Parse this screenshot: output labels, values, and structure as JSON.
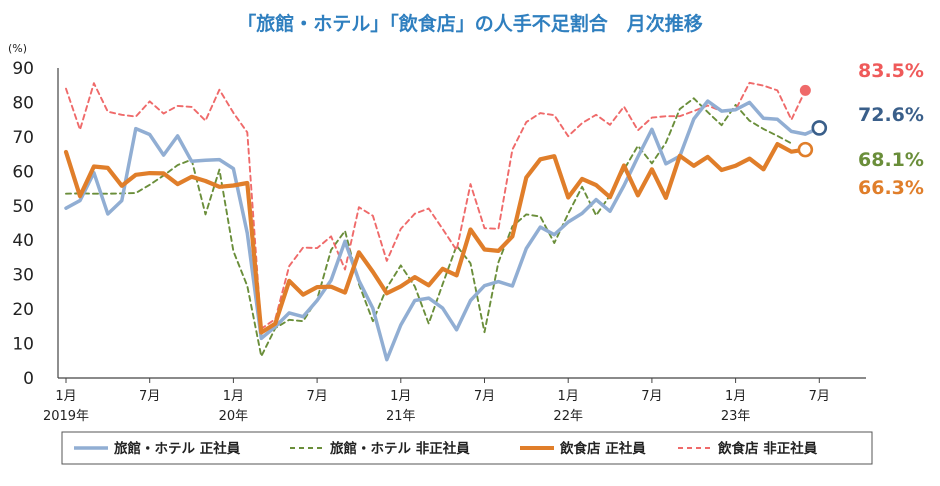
{
  "chart_data": {
    "type": "line",
    "title": "「旅館・ホテル」「飲食店」の人手不足割合　月次推移",
    "unit": "(%)",
    "ylim": [
      0,
      90
    ],
    "yticks": [
      "0",
      "10",
      "20",
      "30",
      "40",
      "50",
      "60",
      "70",
      "80",
      "90"
    ],
    "grid": false,
    "legend_position": "bottom",
    "x_tick_labels": [
      {
        "index": 0,
        "month": "1月",
        "year": "2019年"
      },
      {
        "index": 6,
        "month": "7月",
        "year": ""
      },
      {
        "index": 12,
        "month": "1月",
        "year": "20年"
      },
      {
        "index": 18,
        "month": "7月",
        "year": ""
      },
      {
        "index": 24,
        "month": "1月",
        "year": "21年"
      },
      {
        "index": 30,
        "month": "7月",
        "year": ""
      },
      {
        "index": 36,
        "month": "1月",
        "year": "22年"
      },
      {
        "index": 42,
        "month": "7月",
        "year": ""
      },
      {
        "index": 48,
        "month": "1月",
        "year": "23年"
      },
      {
        "index": 54,
        "month": "7月",
        "year": ""
      }
    ],
    "series": [
      {
        "name": "旅館・ホテル 正社員",
        "color": "#91aed3",
        "style": "solid",
        "end_label": "72.6%",
        "end_label_color": "#3a5f8a",
        "values": [
          49.3,
          51.5,
          59.6,
          47.6,
          51.5,
          72.4,
          70.7,
          64.7,
          70.3,
          62.9,
          63.2,
          63.4,
          60.8,
          42.0,
          11.5,
          14.9,
          18.9,
          17.8,
          22.5,
          28.4,
          39.7,
          28.3,
          20.2,
          5.3,
          15.4,
          22.5,
          23.2,
          20.3,
          14.0,
          22.5,
          26.8,
          28.0,
          26.7,
          37.6,
          43.8,
          41.6,
          45.3,
          47.8,
          51.8,
          48.4,
          55.9,
          64.2,
          72.2,
          62.2,
          64.4,
          75.2,
          80.4,
          77.5,
          77.9,
          80.0,
          75.4,
          75.1,
          71.6,
          70.8,
          72.6
        ]
      },
      {
        "name": "旅館・ホテル 非正社員",
        "color": "#6a8e3a",
        "style": "dashed",
        "end_label": "68.1%",
        "end_label_color": "#6a8e3a",
        "values": [
          53.5,
          53.6,
          53.5,
          53.5,
          53.6,
          53.7,
          56.1,
          58.8,
          61.8,
          63.4,
          47.5,
          60.5,
          36.8,
          26.7,
          6.3,
          14.5,
          16.9,
          16.5,
          22.8,
          37.2,
          42.7,
          27.3,
          16.5,
          26.2,
          32.7,
          26.6,
          15.8,
          27.2,
          38.4,
          33.3,
          13.3,
          33.6,
          44.0,
          47.5,
          46.9,
          39.2,
          47.7,
          55.5,
          47.2,
          53.0,
          60.5,
          67.4,
          62.3,
          68.3,
          78.1,
          81.2,
          77.2,
          73.4,
          79.3,
          74.7,
          72.3,
          70.3,
          68.1
        ]
      },
      {
        "name": "飲食店 正社員",
        "color": "#e07e2a",
        "style": "solid",
        "end_label": "66.3%",
        "end_label_color": "#e07e2a",
        "values": [
          65.6,
          52.8,
          61.4,
          61.0,
          55.8,
          59.0,
          59.5,
          59.4,
          56.3,
          58.4,
          57.2,
          55.5,
          55.9,
          56.6,
          13.2,
          15.8,
          28.2,
          24.2,
          26.4,
          26.5,
          24.8,
          36.5,
          30.8,
          24.6,
          26.6,
          29.3,
          26.9,
          31.7,
          29.8,
          43.1,
          37.3,
          36.9,
          41.1,
          58.2,
          63.5,
          64.4,
          52.4,
          57.8,
          56.0,
          52.5,
          61.7,
          53.0,
          60.6,
          52.3,
          64.5,
          61.6,
          64.2,
          60.4,
          61.6,
          63.7,
          60.6,
          67.9,
          65.7,
          66.3
        ]
      },
      {
        "name": "飲食店 非正社員",
        "color": "#ef6a6a",
        "style": "dashed",
        "end_label": "83.5%",
        "end_label_color": "#ef5a5a",
        "values": [
          84.0,
          72.1,
          85.6,
          77.3,
          76.4,
          75.9,
          80.3,
          76.8,
          79.0,
          78.7,
          74.7,
          83.7,
          77.0,
          71.3,
          14.3,
          17.1,
          32.5,
          37.9,
          37.7,
          41.1,
          31.5,
          49.6,
          47.1,
          34.0,
          43.3,
          47.7,
          49.2,
          43.3,
          37.1,
          56.3,
          43.5,
          43.3,
          66.3,
          74.3,
          76.9,
          76.3,
          70.2,
          74.0,
          76.4,
          73.5,
          78.8,
          71.9,
          75.6,
          76.0,
          76.0,
          77.5,
          79.1,
          77.5,
          77.9,
          85.7,
          84.9,
          83.5,
          75.0,
          83.5
        ]
      }
    ]
  }
}
